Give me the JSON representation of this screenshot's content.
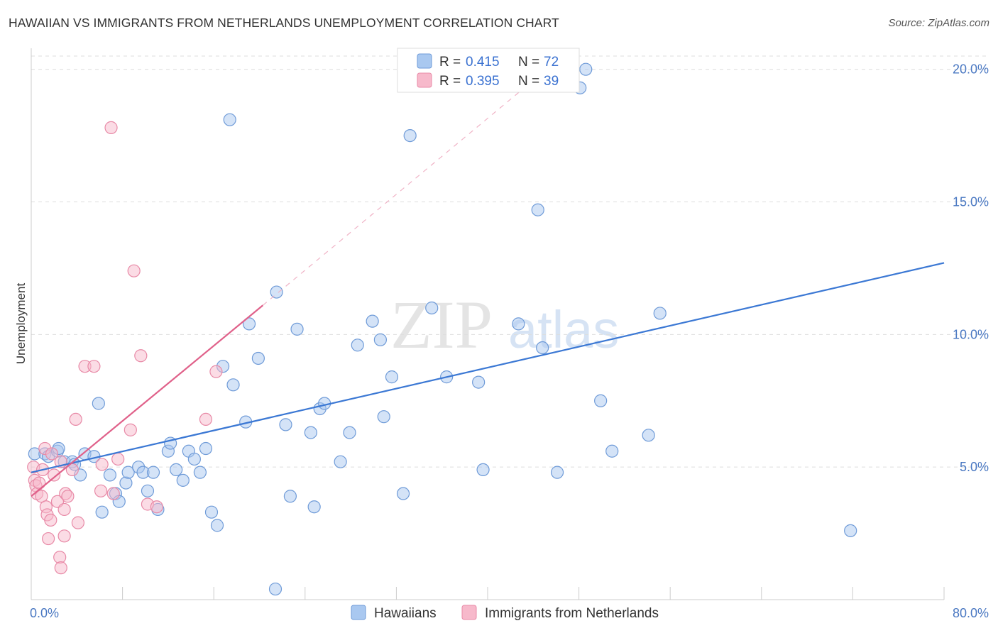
{
  "title": "HAWAIIAN VS IMMIGRANTS FROM NETHERLANDS UNEMPLOYMENT CORRELATION CHART",
  "source": "Source: ZipAtlas.com",
  "watermark": {
    "zip": "ZIP",
    "atlas": "atlas"
  },
  "legend": {
    "r_label": "R =",
    "n_label": "N =",
    "series": [
      {
        "name": "Hawaiians",
        "r": "0.415",
        "n": "72"
      },
      {
        "name": "Immigrants from Netherlands",
        "r": "0.395",
        "n": "39"
      }
    ]
  },
  "colors": {
    "blue_fill": "#a9c8f0",
    "blue_stroke": "#6f9bd8",
    "blue_line": "#3b78d4",
    "pink_fill": "#f7b9cb",
    "pink_stroke": "#e88aa7",
    "pink_line": "#e0618a",
    "grid": "#dddddd",
    "tick_text": "#4a78c2"
  },
  "chart_data": {
    "type": "scatter",
    "title": "HAWAIIAN VS IMMIGRANTS FROM NETHERLANDS UNEMPLOYMENT CORRELATION CHART",
    "xlabel": "",
    "ylabel": "Unemployment",
    "xlim": [
      0,
      80
    ],
    "ylim": [
      0,
      20.5
    ],
    "x_tick_labels": [
      "0.0%",
      "80.0%"
    ],
    "y_ticks": [
      5,
      10,
      15,
      20
    ],
    "y_tick_labels": [
      "5.0%",
      "10.0%",
      "15.0%",
      "20.0%"
    ],
    "grid": true,
    "legend_position": "top-center",
    "series": [
      {
        "name": "Hawaiians",
        "r": 0.415,
        "n": 72,
        "trend": {
          "x0": 0,
          "y0": 4.8,
          "x1": 80,
          "y1": 12.7
        },
        "points": [
          [
            0.3,
            5.5
          ],
          [
            1.2,
            5.5
          ],
          [
            1.5,
            5.4
          ],
          [
            2.3,
            5.6
          ],
          [
            2.4,
            5.7
          ],
          [
            2.9,
            5.2
          ],
          [
            3.6,
            5.2
          ],
          [
            3.8,
            5.1
          ],
          [
            4.3,
            4.7
          ],
          [
            4.7,
            5.5
          ],
          [
            5.5,
            5.4
          ],
          [
            5.9,
            7.4
          ],
          [
            6.2,
            3.3
          ],
          [
            6.9,
            4.7
          ],
          [
            7.4,
            4.0
          ],
          [
            7.7,
            3.7
          ],
          [
            8.3,
            4.4
          ],
          [
            8.5,
            4.8
          ],
          [
            9.4,
            5.0
          ],
          [
            9.8,
            4.8
          ],
          [
            10.2,
            4.1
          ],
          [
            10.7,
            4.8
          ],
          [
            11.1,
            3.4
          ],
          [
            12.0,
            5.6
          ],
          [
            12.2,
            5.9
          ],
          [
            12.7,
            4.9
          ],
          [
            13.3,
            4.5
          ],
          [
            13.8,
            5.6
          ],
          [
            14.3,
            5.3
          ],
          [
            14.8,
            4.8
          ],
          [
            15.3,
            5.7
          ],
          [
            15.8,
            3.3
          ],
          [
            16.3,
            2.8
          ],
          [
            16.8,
            8.8
          ],
          [
            17.4,
            18.1
          ],
          [
            17.7,
            8.1
          ],
          [
            18.8,
            6.7
          ],
          [
            19.1,
            10.4
          ],
          [
            19.9,
            9.1
          ],
          [
            21.4,
            0.4
          ],
          [
            21.5,
            11.6
          ],
          [
            22.3,
            6.6
          ],
          [
            22.7,
            3.9
          ],
          [
            23.3,
            10.2
          ],
          [
            24.5,
            6.3
          ],
          [
            24.8,
            3.5
          ],
          [
            25.3,
            7.2
          ],
          [
            25.7,
            7.4
          ],
          [
            27.1,
            5.2
          ],
          [
            27.9,
            6.3
          ],
          [
            28.6,
            9.6
          ],
          [
            29.9,
            10.5
          ],
          [
            30.6,
            9.8
          ],
          [
            30.9,
            6.9
          ],
          [
            31.6,
            8.4
          ],
          [
            32.6,
            4.0
          ],
          [
            33.2,
            17.5
          ],
          [
            35.1,
            11.0
          ],
          [
            36.4,
            8.4
          ],
          [
            39.2,
            8.2
          ],
          [
            39.6,
            4.9
          ],
          [
            42.7,
            10.4
          ],
          [
            44.4,
            14.7
          ],
          [
            44.8,
            9.5
          ],
          [
            46.1,
            4.8
          ],
          [
            48.1,
            19.3
          ],
          [
            48.6,
            20.0
          ],
          [
            49.9,
            7.5
          ],
          [
            50.9,
            5.6
          ],
          [
            54.1,
            6.2
          ],
          [
            55.1,
            10.8
          ],
          [
            71.8,
            2.6
          ]
        ]
      },
      {
        "name": "Immigrants from Netherlands",
        "r": 0.395,
        "n": 39,
        "trend": {
          "x0": 0,
          "y0": 3.9,
          "x1": 20.3,
          "y1": 11.1
        },
        "trend_extension": {
          "x0": 20.3,
          "y0": 11.1,
          "x1": 46.0,
          "y1": 20.3
        },
        "points": [
          [
            0.2,
            5.0
          ],
          [
            0.3,
            4.5
          ],
          [
            0.4,
            4.3
          ],
          [
            0.5,
            4.0
          ],
          [
            0.7,
            4.4
          ],
          [
            0.9,
            3.9
          ],
          [
            1.0,
            4.9
          ],
          [
            1.2,
            5.7
          ],
          [
            1.3,
            3.5
          ],
          [
            1.4,
            3.2
          ],
          [
            1.5,
            2.3
          ],
          [
            1.7,
            3.0
          ],
          [
            1.8,
            5.5
          ],
          [
            2.0,
            4.7
          ],
          [
            2.3,
            3.7
          ],
          [
            2.5,
            1.6
          ],
          [
            2.6,
            1.2
          ],
          [
            2.6,
            5.2
          ],
          [
            2.9,
            3.4
          ],
          [
            2.9,
            2.4
          ],
          [
            3.0,
            4.0
          ],
          [
            3.2,
            3.9
          ],
          [
            3.6,
            4.9
          ],
          [
            3.9,
            6.8
          ],
          [
            4.1,
            2.9
          ],
          [
            4.7,
            8.8
          ],
          [
            5.5,
            8.8
          ],
          [
            6.1,
            4.1
          ],
          [
            6.2,
            5.1
          ],
          [
            7.0,
            17.8
          ],
          [
            7.2,
            4.0
          ],
          [
            7.6,
            5.3
          ],
          [
            8.7,
            6.4
          ],
          [
            9.0,
            12.4
          ],
          [
            9.6,
            9.2
          ],
          [
            10.2,
            3.6
          ],
          [
            11.0,
            3.5
          ],
          [
            15.3,
            6.8
          ],
          [
            16.2,
            8.6
          ]
        ]
      }
    ]
  }
}
